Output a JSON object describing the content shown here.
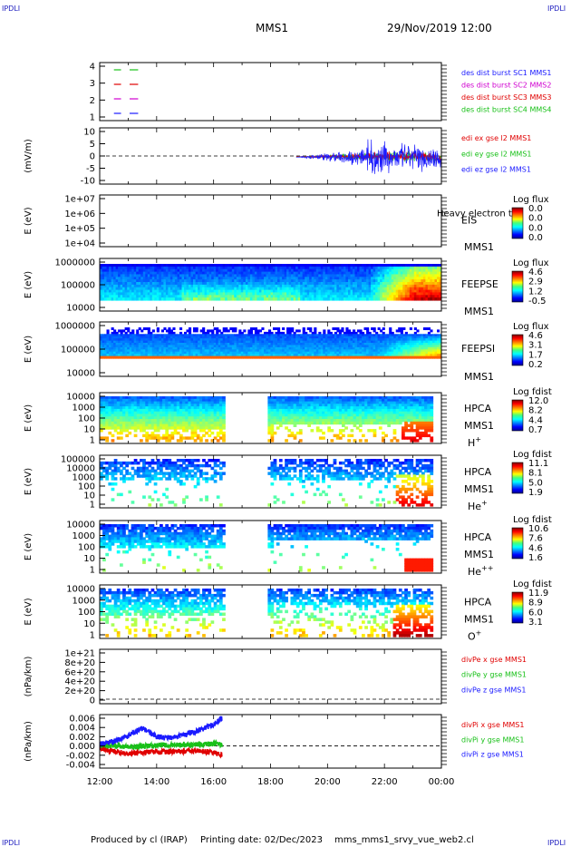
{
  "header": {
    "corner_left": "IPDLI",
    "corner_right": "IPDLI",
    "corner_bottom_left": "IPDLI",
    "corner_bottom_right": "IPDLI",
    "spacecraft": "MMS1",
    "datetime": "29/Nov/2019 12:00"
  },
  "footer": {
    "produced_by": "Produced by cl (IRAP)",
    "printing_date": "Printing date: 02/Dec/2023",
    "filename": "mms_mms1_srvy_vue_web2.cl"
  },
  "colors": {
    "blue": "#1a1aff",
    "red": "#e00000",
    "green": "#18c018",
    "magenta": "#d000d0"
  },
  "chart_data": [
    {
      "type": "line",
      "panel": "burst",
      "ylabel": "",
      "ylim": [
        0.5,
        4.5
      ],
      "yticks": [
        "4",
        "3",
        "2",
        "1"
      ],
      "legend": [
        {
          "label": "des dist burst SC1 MMS1",
          "color": "#1a1aff"
        },
        {
          "label": "des dist burst SC2 MMS2",
          "color": "#d000d0"
        },
        {
          "label": "des dist burst SC3 MMS3",
          "color": "#e00000"
        },
        {
          "label": "des dist burst SC4 MMS4",
          "color": "#18c018"
        }
      ],
      "series": [
        {
          "name": "des dist burst SC1 MMS1",
          "y": 1,
          "segments": [
            [
              12.5,
              12.75
            ],
            [
              13.05,
              13.35
            ]
          ]
        },
        {
          "name": "des dist burst SC2 MMS2",
          "y": 2,
          "segments": [
            [
              12.5,
              12.75
            ],
            [
              13.05,
              13.35
            ]
          ]
        },
        {
          "name": "des dist burst SC3 MMS3",
          "y": 3,
          "segments": [
            [
              12.5,
              12.75
            ],
            [
              13.05,
              13.35
            ]
          ]
        },
        {
          "name": "des dist burst SC4 MMS4",
          "y": 4,
          "segments": [
            [
              12.5,
              12.75
            ],
            [
              13.05,
              13.35
            ]
          ]
        }
      ]
    },
    {
      "type": "line",
      "panel": "edi",
      "ylabel": "(mV/m)",
      "ylim": [
        -12,
        12
      ],
      "yticks": [
        "10",
        "5",
        "0",
        "-5",
        "-10"
      ],
      "legend": [
        {
          "label": "edi ex gse l2 MMS1",
          "color": "#e00000"
        },
        {
          "label": "edi ey gse l2 MMS1",
          "color": "#18c018"
        },
        {
          "label": "edi ez gse l2 MMS1",
          "color": "#1a1aff"
        }
      ],
      "data_range": [
        18.9,
        24.0
      ],
      "zero_line": true
    },
    {
      "type": "heatmap",
      "panel": "eis",
      "ylabel": "E (eV)",
      "yticks": [
        "1e+07",
        "1e+06",
        "1e+05",
        "1e+04"
      ],
      "label": "EIS",
      "sublabel": "MMS1",
      "extra_text": "Heavy electron te",
      "colorbar": {
        "title": "Log flux",
        "values": [
          "0.0",
          "0.0",
          "0.0",
          "0.0"
        ]
      }
    },
    {
      "type": "heatmap",
      "panel": "feepse",
      "ylabel": "E (eV)",
      "yticks": [
        "1000000",
        "100000",
        "10000"
      ],
      "label": "FEEPSE",
      "sublabel": "MMS1",
      "colorbar": {
        "title": "Log flux",
        "values": [
          "4.6",
          "2.9",
          "1.2",
          "-0.5"
        ]
      }
    },
    {
      "type": "heatmap",
      "panel": "feepsi",
      "ylabel": "E (eV)",
      "yticks": [
        "1000000",
        "100000",
        "10000"
      ],
      "label": "FEEPSI",
      "sublabel": "MMS1",
      "colorbar": {
        "title": "Log flux",
        "values": [
          "4.6",
          "3.1",
          "1.7",
          "0.2"
        ]
      }
    },
    {
      "type": "heatmap",
      "panel": "hpca_h",
      "ylabel": "E (eV)",
      "yticks": [
        "10000",
        "1000",
        "100",
        "10",
        "1"
      ],
      "label": "HPCA",
      "sublabel": "MMS1",
      "species": "H",
      "species_sup": "+",
      "gap": [
        16.3,
        17.9
      ],
      "colorbar": {
        "title": "Log fdist",
        "values": [
          "12.0",
          "8.2",
          "4.4",
          "0.7"
        ]
      }
    },
    {
      "type": "heatmap",
      "panel": "hpca_he1",
      "ylabel": "E (eV)",
      "yticks": [
        "100000",
        "10000",
        "1000",
        "100",
        "10",
        "1"
      ],
      "label": "HPCA",
      "sublabel": "MMS1",
      "species": "He",
      "species_sup": "+",
      "gap": [
        16.3,
        17.9
      ],
      "colorbar": {
        "title": "Log fdist",
        "values": [
          "11.1",
          "8.1",
          "5.0",
          "1.9"
        ]
      }
    },
    {
      "type": "heatmap",
      "panel": "hpca_he2",
      "ylabel": "E (eV)",
      "yticks": [
        "10000",
        "1000",
        "100",
        "10",
        "1"
      ],
      "label": "HPCA",
      "sublabel": "MMS1",
      "species": "He",
      "species_sup": "++",
      "gap": [
        16.3,
        17.9
      ],
      "colorbar": {
        "title": "Log fdist",
        "values": [
          "10.6",
          "7.6",
          "4.6",
          "1.6"
        ]
      }
    },
    {
      "type": "heatmap",
      "panel": "hpca_o",
      "ylabel": "E (eV)",
      "yticks": [
        "10000",
        "1000",
        "100",
        "10",
        "1"
      ],
      "label": "HPCA",
      "sublabel": "MMS1",
      "species": "O",
      "species_sup": "+",
      "gap": [
        16.3,
        17.9
      ],
      "colorbar": {
        "title": "Log fdist",
        "values": [
          "11.9",
          "8.9",
          "6.0",
          "3.1"
        ]
      }
    },
    {
      "type": "line",
      "panel": "divpe",
      "ylabel": "(nPa/km)",
      "ylim": [
        -5e+19,
        1.05e+21
      ],
      "yticks": [
        "1e+21",
        "8e+20",
        "6e+20",
        "4e+20",
        "2e+20",
        "0"
      ],
      "legend": [
        {
          "label": "divPe x gse MMS1",
          "color": "#e00000"
        },
        {
          "label": "divPe y gse MMS1",
          "color": "#18c018"
        },
        {
          "label": "divPe z gse MMS1",
          "color": "#1a1aff"
        }
      ],
      "zero_line": true
    },
    {
      "type": "line",
      "panel": "divpi",
      "ylabel": "(nPa/km)",
      "ylim": [
        -0.005,
        0.007
      ],
      "yticks": [
        "0.006",
        "0.004",
        "0.002",
        "0.000",
        "-0.002",
        "-0.004"
      ],
      "legend": [
        {
          "label": "divPi x gse MMS1",
          "color": "#e00000"
        },
        {
          "label": "divPi y gse MMS1",
          "color": "#18c018"
        },
        {
          "label": "divPi z gse MMS1",
          "color": "#1a1aff"
        }
      ],
      "data_range": [
        12.0,
        16.3
      ],
      "series": [
        {
          "name": "divPi x gse MMS1",
          "x": [
            12.0,
            12.5,
            13.0,
            13.5,
            14.0,
            14.5,
            15.0,
            15.5,
            16.0,
            16.3
          ],
          "y": [
            -0.0005,
            -0.0012,
            -0.0018,
            -0.0015,
            -0.0012,
            -0.0013,
            -0.0012,
            -0.0011,
            -0.0015,
            -0.0022
          ]
        },
        {
          "name": "divPi y gse MMS1",
          "x": [
            12.0,
            12.5,
            13.0,
            13.5,
            14.0,
            14.5,
            15.0,
            15.5,
            16.0,
            16.3
          ],
          "y": [
            0.0002,
            0.0001,
            -0.0002,
            -0.0001,
            0.0001,
            0.0002,
            0.0002,
            0.0003,
            0.0004,
            0.0003
          ]
        },
        {
          "name": "divPi z gse MMS1",
          "x": [
            12.0,
            12.5,
            13.0,
            13.5,
            14.0,
            14.5,
            15.0,
            15.5,
            16.0,
            16.3
          ],
          "y": [
            0.0005,
            0.001,
            0.0022,
            0.004,
            0.002,
            0.0018,
            0.0025,
            0.0035,
            0.0048,
            0.0062
          ]
        }
      ],
      "zero_line": true
    }
  ],
  "xaxis": {
    "ticks": [
      "12:00",
      "14:00",
      "16:00",
      "18:00",
      "20:00",
      "22:00",
      "00:00"
    ],
    "range": [
      12,
      24
    ]
  }
}
